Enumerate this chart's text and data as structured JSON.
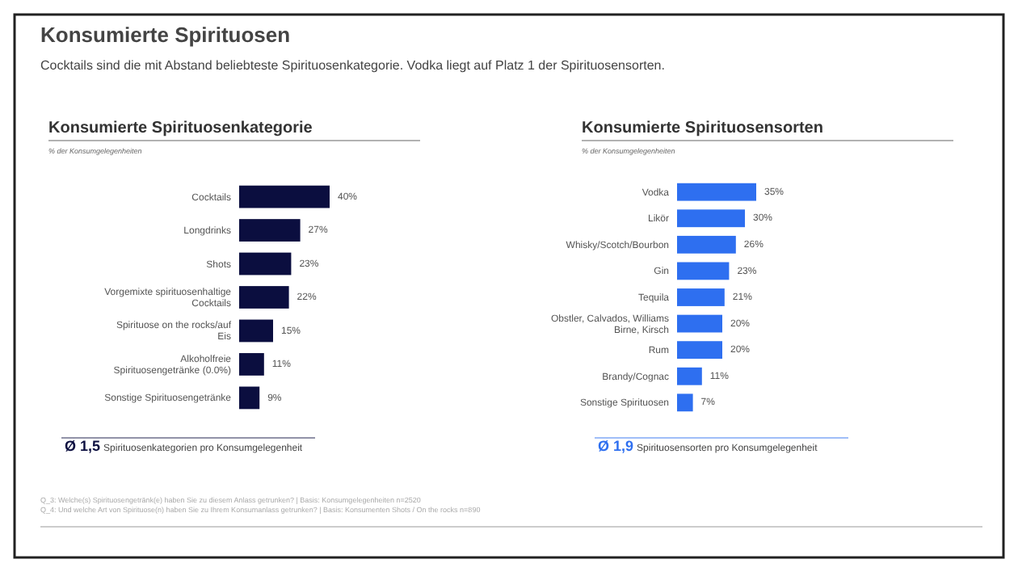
{
  "chart_data": [
    {
      "type": "bar",
      "orientation": "horizontal",
      "title": "Konsumierte Spirituosenkategorie",
      "subtitle": "% der Konsumgelegenheiten",
      "categories": [
        "Cocktails",
        "Longdrinks",
        "Shots",
        "Vorgemixte spirituosenhaltige Cocktails",
        "Spirituose on the rocks/auf Eis",
        "Alkoholfreie Spirituosengetränke (0.0%)",
        "Sonstige Spirituosengetränke"
      ],
      "values": [
        40,
        27,
        23,
        22,
        15,
        11,
        9
      ],
      "value_labels": [
        "40%",
        "27%",
        "23%",
        "22%",
        "15%",
        "11%",
        "9%"
      ],
      "color": "#0b0e3f",
      "annotations": [
        "Konsumierte Spirituosen",
        "Cocktails sind die mit Abstand beliebteste Spirituosenkategorie. Vodka liegt auf Platz 1 der Spirituosensorten.",
        "Ø 1,5 Spirituosenkategorien pro Konsumgelegenheit",
        "Q_3: Welche(s) Spirituosengetränk(e) haben Sie zu diesem Anlass getrunken? | Basis: Konsumgelegenheiten n=2520",
        "Q_4: Und welche Art von Spirituose(n) haben Sie zu Ihrem Konsumanlass getrunken? | Basis: Konsumenten Shots / On the rocks n=890"
      ]
    },
    {
      "type": "bar",
      "orientation": "horizontal",
      "title": "Konsumierte Spirituosensorten",
      "subtitle": "% der Konsumgelegenheiten",
      "categories": [
        "Vodka",
        "Likör",
        "Whisky/Scotch/Bourbon",
        "Gin",
        "Tequila",
        "Obstler, Calvados, Williams Birne, Kirsch",
        "Rum",
        "Brandy/Cognac",
        "Sonstige Spirituosen"
      ],
      "values": [
        35,
        30,
        26,
        23,
        21,
        20,
        20,
        11,
        7
      ],
      "value_labels": [
        "35%",
        "30%",
        "26%",
        "23%",
        "21%",
        "20%",
        "20%",
        "11%",
        "7%"
      ],
      "color": "#2e6ff0",
      "annotations": [
        "Ø 1,9 Spirituosensorten pro Konsumgelegenheit"
      ]
    }
  ]
}
